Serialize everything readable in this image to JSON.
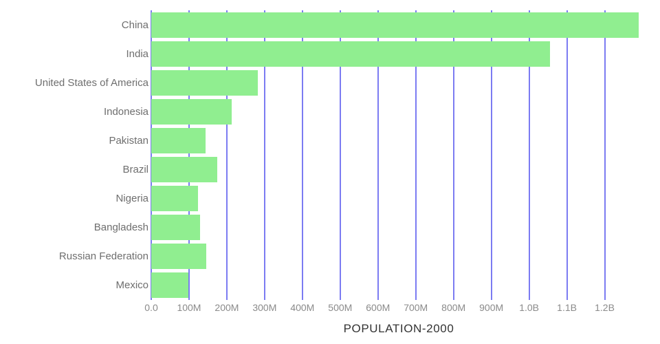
{
  "chart_data": {
    "type": "bar",
    "orientation": "horizontal",
    "title": "POPULATION-2000",
    "xlabel": "",
    "ylabel": "",
    "grid": "vertical",
    "legend": false,
    "categories": [
      "China",
      "India",
      "United States of America",
      "Indonesia",
      "Pakistan",
      "Brazil",
      "Nigeria",
      "Bangladesh",
      "Russian Federation",
      "Mexico"
    ],
    "values_millions": [
      1290,
      1056,
      282,
      212,
      143,
      175,
      123,
      129,
      146,
      99
    ],
    "x_ticks": [
      {
        "label": "0.0",
        "millions": 0
      },
      {
        "label": "100M",
        "millions": 100
      },
      {
        "label": "200M",
        "millions": 200
      },
      {
        "label": "300M",
        "millions": 300
      },
      {
        "label": "400M",
        "millions": 400
      },
      {
        "label": "500M",
        "millions": 500
      },
      {
        "label": "600M",
        "millions": 600
      },
      {
        "label": "700M",
        "millions": 700
      },
      {
        "label": "800M",
        "millions": 800
      },
      {
        "label": "900M",
        "millions": 900
      },
      {
        "label": "1.0B",
        "millions": 1000
      },
      {
        "label": "1.1B",
        "millions": 1100
      },
      {
        "label": "1.2B",
        "millions": 1200
      }
    ],
    "xlim_millions": [
      0,
      1310
    ],
    "colors": {
      "bar": "#90ee90",
      "gridline": "#7b7bf2",
      "category_label": "#6e6e6e",
      "tick_label": "#8a8a8a",
      "title": "#333333",
      "background": "#ffffff"
    }
  }
}
